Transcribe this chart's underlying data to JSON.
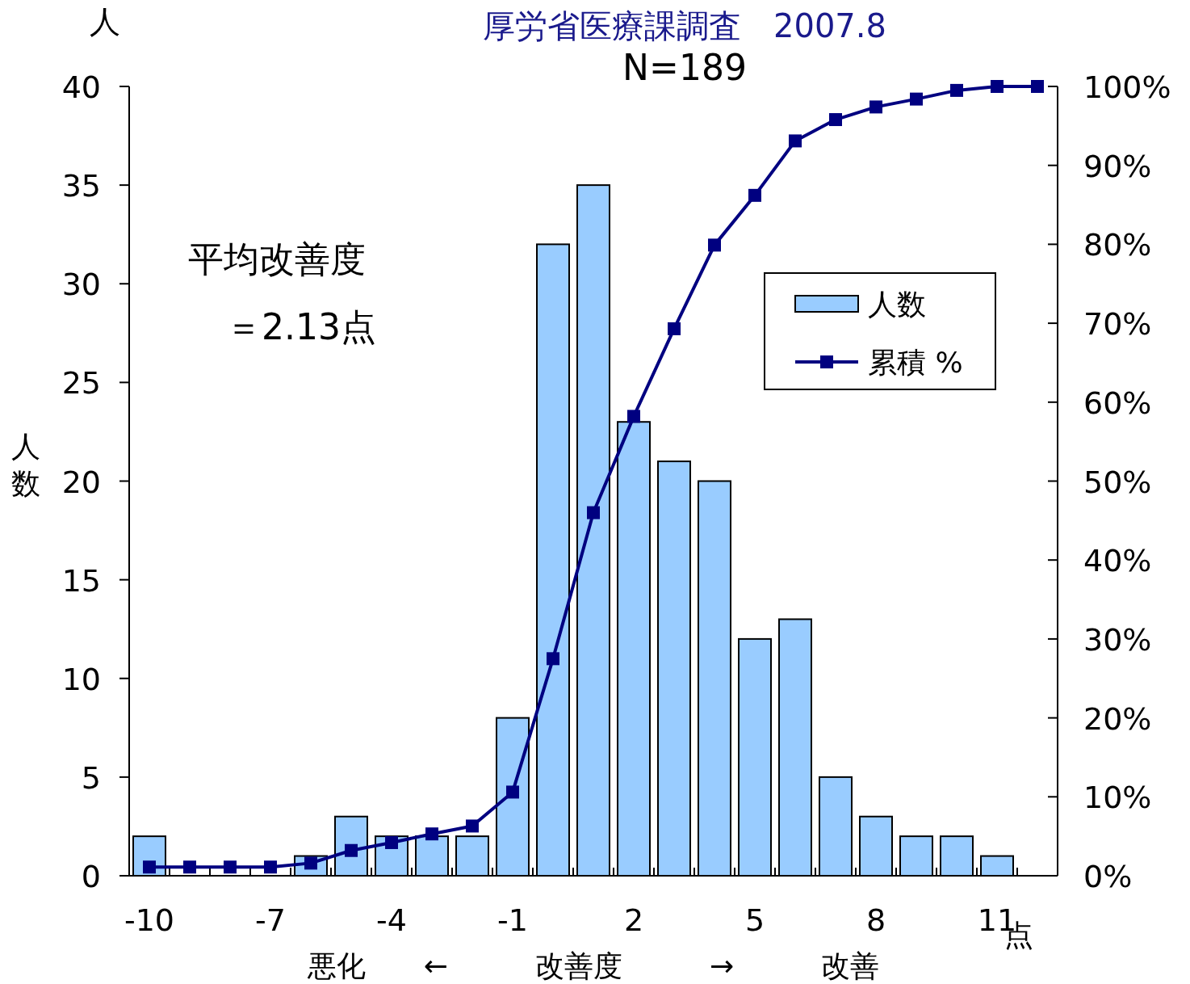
{
  "chart_data": {
    "type": "bar",
    "title": "厚労省医療課調査　2007.8",
    "subtitle": "N=189",
    "ylabel": "人数",
    "xlabel": "悪化　　←　　　改善度　　　→　　　改善",
    "annotations": [
      "人",
      "点",
      "平均改善度",
      "＝2.13点"
    ],
    "categories": [
      "-10",
      null,
      null,
      "-7",
      null,
      null,
      "-4",
      null,
      null,
      "-1",
      null,
      null,
      "2",
      null,
      null,
      "5",
      null,
      null,
      "8",
      null,
      null,
      "11",
      null
    ],
    "series": [
      {
        "name": "人数",
        "color": "#99ccff",
        "values": [
          2,
          0,
          0,
          0,
          1,
          3,
          2,
          2,
          2,
          8,
          32,
          35,
          23,
          21,
          20,
          12,
          13,
          5,
          3,
          2,
          2,
          1,
          0
        ]
      },
      {
        "name": "累積 %",
        "type": "line",
        "axis": "y2",
        "color": "#000080",
        "values": [
          1.1,
          1.1,
          1.1,
          1.1,
          1.6,
          3.2,
          4.2,
          5.3,
          6.3,
          10.6,
          27.5,
          46.0,
          58.2,
          69.3,
          79.9,
          86.2,
          93.1,
          95.8,
          97.4,
          98.4,
          99.5,
          100,
          100
        ]
      }
    ],
    "ylim": [
      0,
      40
    ],
    "yticks": [
      0,
      5,
      10,
      15,
      20,
      25,
      30,
      35,
      40
    ],
    "y2lim": [
      0,
      100
    ],
    "y2ticks": [
      {
        "value": 0,
        "label": "0%"
      },
      {
        "value": 10,
        "label": "10%"
      },
      {
        "value": 20,
        "label": "20%"
      },
      {
        "value": 30,
        "label": "30%"
      },
      {
        "value": 40,
        "label": "40%"
      },
      {
        "value": 50,
        "label": "50%"
      },
      {
        "value": 60,
        "label": "60%"
      },
      {
        "value": 70,
        "label": "70%"
      },
      {
        "value": 80,
        "label": "80%"
      },
      {
        "value": 90,
        "label": "90%"
      },
      {
        "value": 100,
        "label": "100%"
      }
    ],
    "grid": false,
    "legend": "right",
    "marker": "square",
    "line_style": "solid"
  }
}
